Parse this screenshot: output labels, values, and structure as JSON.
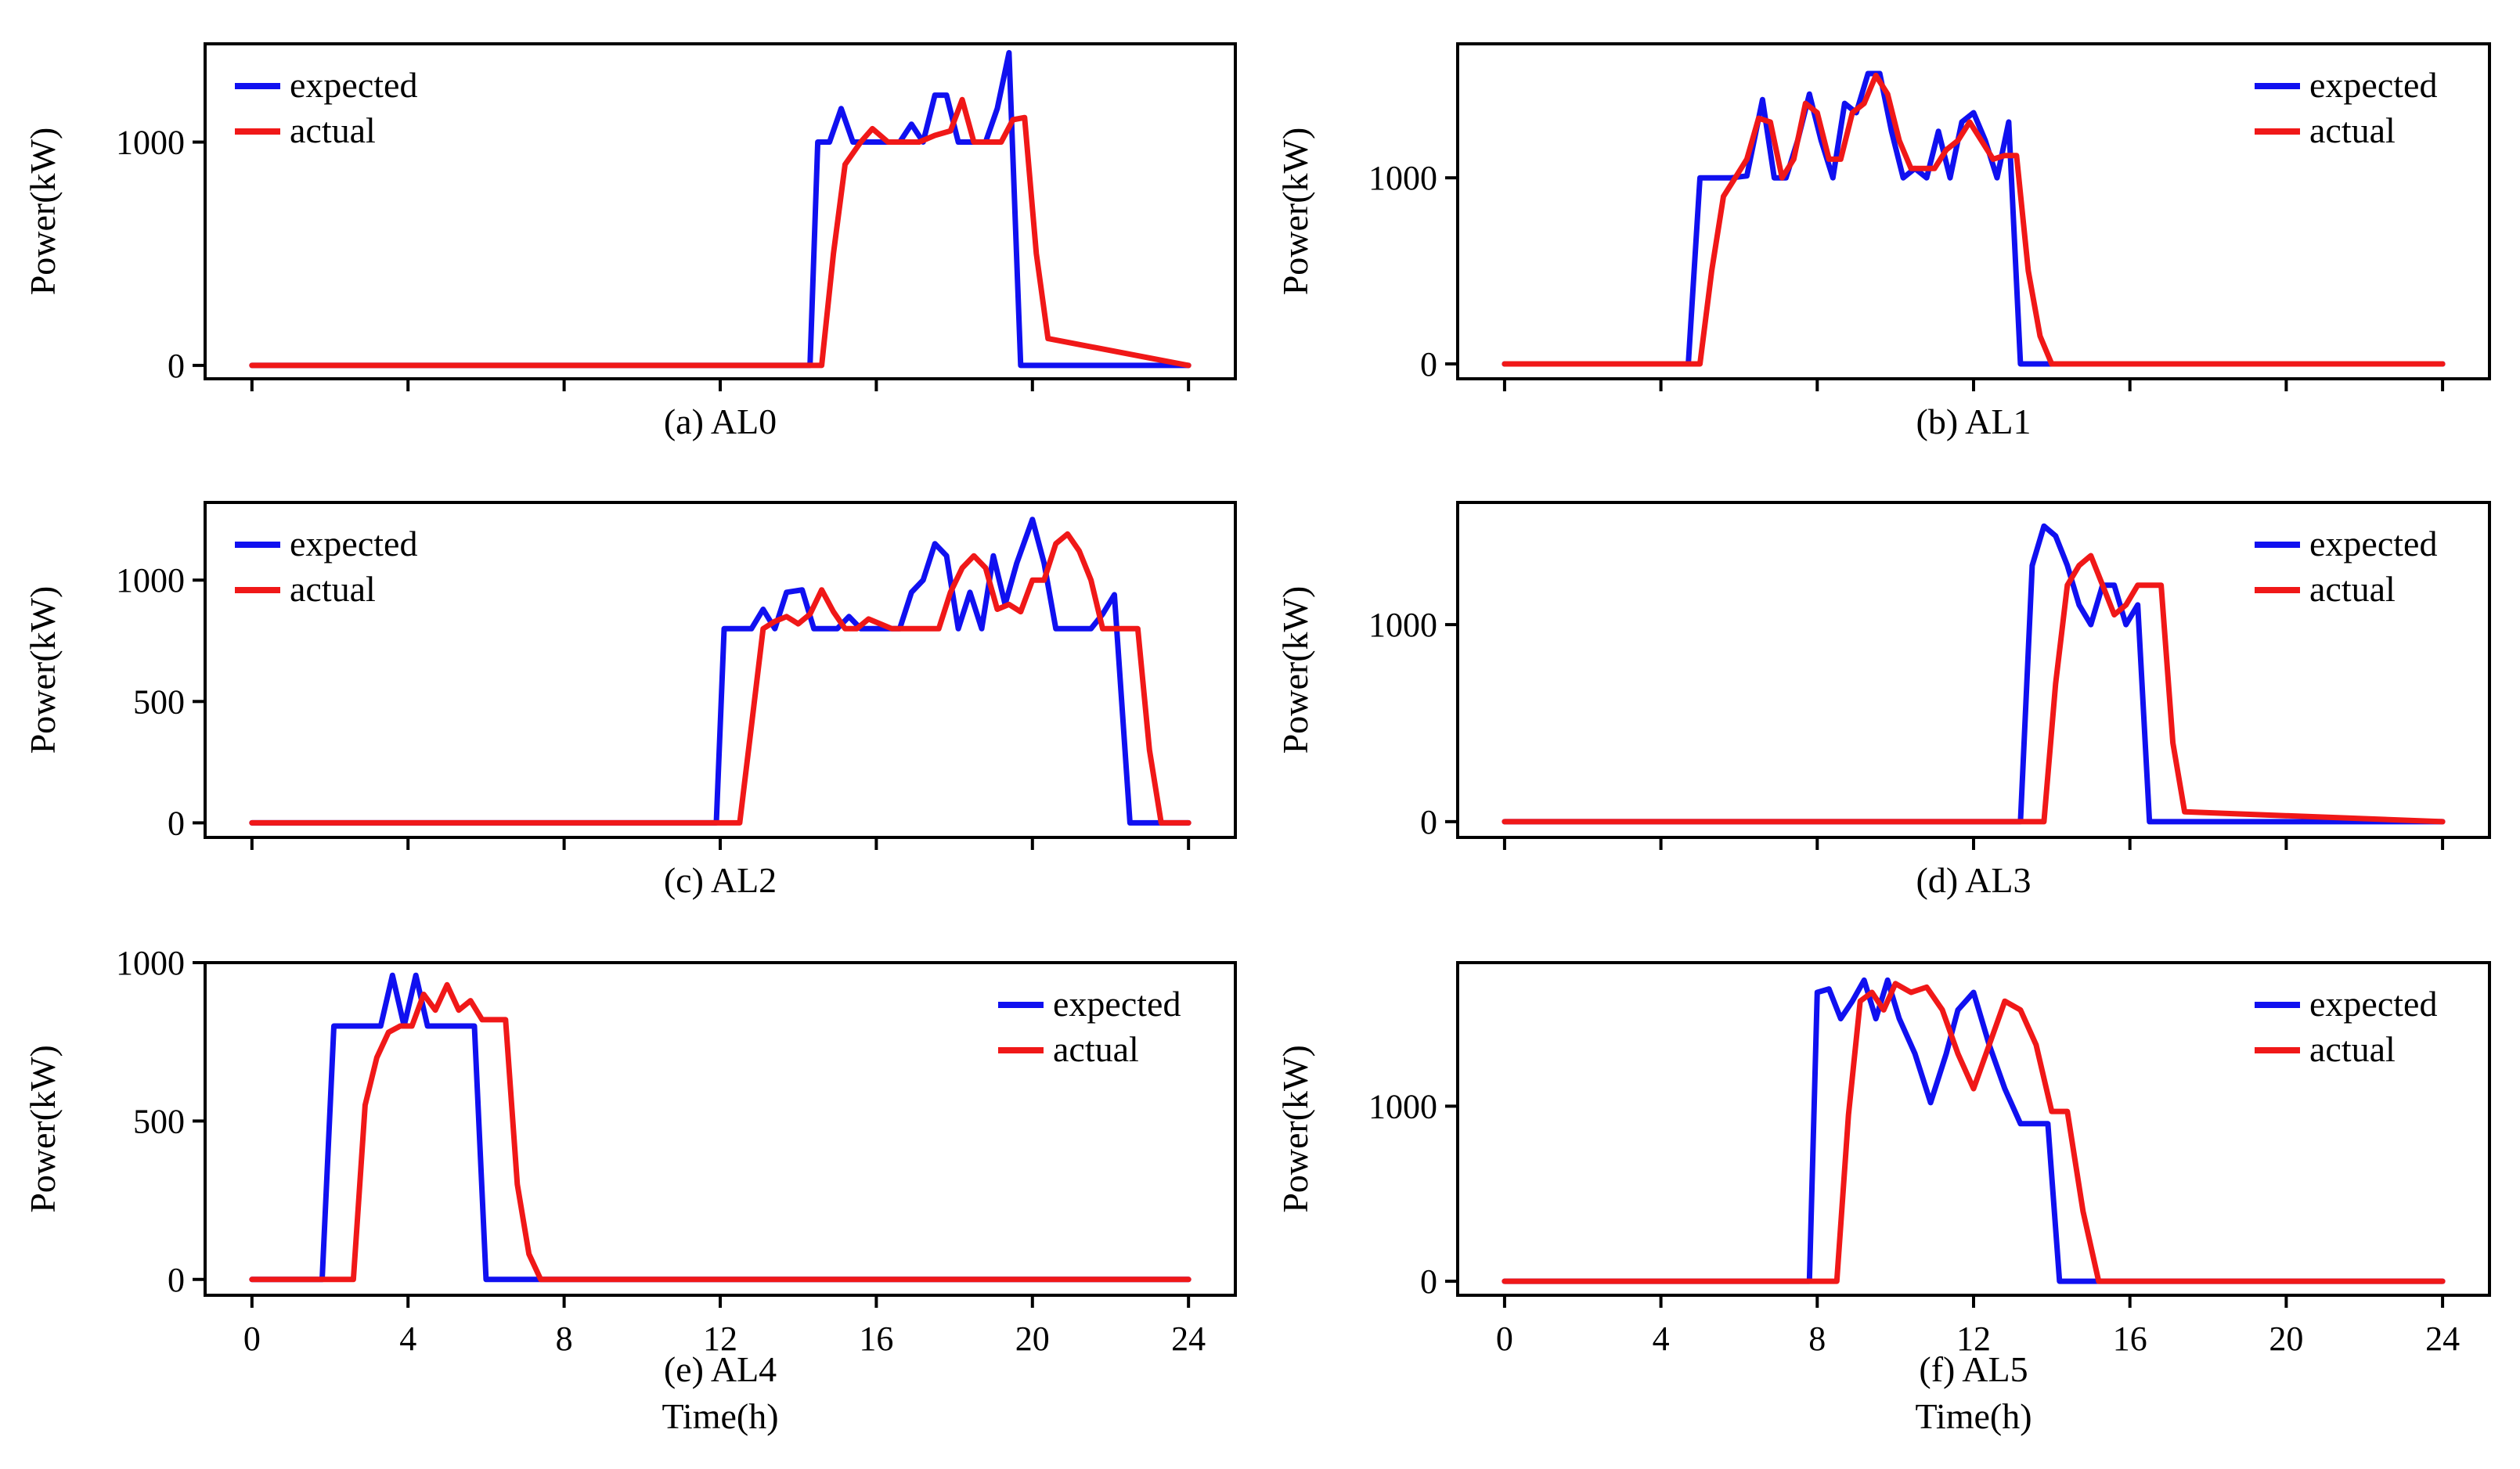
{
  "figure": {
    "x_axis_title": "Time(h)",
    "y_axis_title": "Power(kW)",
    "series_colors": {
      "expected": "#1010f0",
      "actual": "#f01818"
    }
  },
  "chart_data": [
    {
      "type": "line",
      "id": "al0",
      "caption": "(a) AL0",
      "xlim": [
        -1.2,
        25.2
      ],
      "ylim": [
        -60,
        1440
      ],
      "xticks": [
        0,
        4,
        8,
        12,
        16,
        20,
        24
      ],
      "show_xtick_labels": false,
      "yticks": [
        0,
        1000
      ],
      "ytick_labels": [
        "0",
        "1000"
      ],
      "ylabel": "Power(kW)",
      "xlabel": "",
      "legend_position": "top-left",
      "series": [
        {
          "name": "expected",
          "legend_label": "expected",
          "x": [
            0,
            14.3,
            14.5,
            14.8,
            15.1,
            15.4,
            15.8,
            16.2,
            16.6,
            16.9,
            17.2,
            17.5,
            17.8,
            18.1,
            18.4,
            18.8,
            19.1,
            19.4,
            19.7,
            24
          ],
          "y": [
            0,
            0,
            1000,
            1000,
            1150,
            1000,
            1000,
            1000,
            1000,
            1080,
            1000,
            1210,
            1210,
            1000,
            1000,
            1000,
            1150,
            1400,
            0,
            0
          ]
        },
        {
          "name": "actual",
          "legend_label": "actual",
          "x": [
            0,
            14.6,
            14.9,
            15.2,
            15.6,
            15.9,
            16.3,
            16.7,
            17.1,
            17.5,
            17.9,
            18.2,
            18.5,
            18.8,
            19.2,
            19.5,
            19.8,
            20.1,
            20.4,
            24
          ],
          "y": [
            0,
            0,
            500,
            900,
            1000,
            1060,
            1000,
            1000,
            1000,
            1030,
            1050,
            1190,
            1000,
            1000,
            1000,
            1100,
            1110,
            500,
            120,
            0
          ]
        }
      ]
    },
    {
      "type": "line",
      "id": "al1",
      "caption": "(b) AL1",
      "xlim": [
        -1.2,
        25.2
      ],
      "ylim": [
        -80,
        1720
      ],
      "xticks": [
        0,
        4,
        8,
        12,
        16,
        20,
        24
      ],
      "show_xtick_labels": false,
      "yticks": [
        0,
        1000
      ],
      "ytick_labels": [
        "0",
        "1000"
      ],
      "ylabel": "Power(kW)",
      "xlabel": "",
      "legend_position": "top-right",
      "series": [
        {
          "name": "expected",
          "legend_label": "expected",
          "x": [
            0,
            4.7,
            5.0,
            5.4,
            5.8,
            6.2,
            6.6,
            6.9,
            7.2,
            7.5,
            7.8,
            8.1,
            8.4,
            8.7,
            9.0,
            9.3,
            9.6,
            9.9,
            10.2,
            10.5,
            10.8,
            11.1,
            11.4,
            11.7,
            12.0,
            12.3,
            12.6,
            12.9,
            13.2,
            13.5,
            13.8,
            14.1,
            24
          ],
          "y": [
            0,
            0,
            1000,
            1000,
            1000,
            1010,
            1420,
            1000,
            1000,
            1200,
            1450,
            1200,
            1000,
            1400,
            1350,
            1560,
            1560,
            1250,
            1000,
            1050,
            1000,
            1250,
            1000,
            1300,
            1350,
            1200,
            1000,
            1300,
            0,
            0,
            0,
            0,
            0
          ]
        },
        {
          "name": "actual",
          "legend_label": "actual",
          "x": [
            0,
            5.0,
            5.3,
            5.6,
            5.9,
            6.2,
            6.5,
            6.8,
            7.1,
            7.4,
            7.7,
            8.0,
            8.3,
            8.6,
            8.9,
            9.2,
            9.5,
            9.8,
            10.1,
            10.4,
            10.7,
            11.0,
            11.3,
            11.6,
            11.9,
            12.2,
            12.5,
            12.8,
            13.1,
            13.4,
            13.7,
            14.0,
            24
          ],
          "y": [
            0,
            0,
            500,
            900,
            1000,
            1100,
            1320,
            1300,
            1000,
            1100,
            1400,
            1350,
            1100,
            1100,
            1350,
            1400,
            1550,
            1450,
            1200,
            1050,
            1050,
            1050,
            1150,
            1200,
            1300,
            1200,
            1100,
            1120,
            1120,
            500,
            150,
            0,
            0
          ]
        }
      ]
    },
    {
      "type": "line",
      "id": "al2",
      "caption": "(c) AL2",
      "xlim": [
        -1.2,
        25.2
      ],
      "ylim": [
        -60,
        1320
      ],
      "xticks": [
        0,
        4,
        8,
        12,
        16,
        20,
        24
      ],
      "show_xtick_labels": false,
      "yticks": [
        0,
        500,
        1000
      ],
      "ytick_labels": [
        "0",
        "500",
        "1000"
      ],
      "ylabel": "Power(kW)",
      "xlabel": "",
      "legend_position": "top-left",
      "series": [
        {
          "name": "expected",
          "legend_label": "expected",
          "x": [
            0,
            11.9,
            12.1,
            12.4,
            12.8,
            13.1,
            13.4,
            13.7,
            14.1,
            14.4,
            14.7,
            15.0,
            15.3,
            15.6,
            16.0,
            16.3,
            16.6,
            16.9,
            17.2,
            17.5,
            17.8,
            18.1,
            18.4,
            18.7,
            19.0,
            19.3,
            19.6,
            20.0,
            20.3,
            20.6,
            20.9,
            21.2,
            21.5,
            21.8,
            22.1,
            22.5,
            22.9,
            24
          ],
          "y": [
            0,
            0,
            800,
            800,
            800,
            880,
            800,
            950,
            960,
            800,
            800,
            800,
            850,
            800,
            800,
            800,
            800,
            950,
            1000,
            1150,
            1100,
            800,
            950,
            800,
            1100,
            900,
            1070,
            1250,
            1070,
            800,
            800,
            800,
            800,
            860,
            940,
            0,
            0,
            0
          ]
        },
        {
          "name": "actual",
          "legend_label": "actual",
          "x": [
            0,
            12.5,
            12.8,
            13.1,
            13.4,
            13.7,
            14.0,
            14.3,
            14.6,
            14.9,
            15.2,
            15.5,
            15.8,
            16.1,
            16.4,
            16.7,
            17.0,
            17.3,
            17.6,
            17.9,
            18.2,
            18.5,
            18.8,
            19.1,
            19.4,
            19.7,
            20.0,
            20.3,
            20.6,
            20.9,
            21.2,
            21.5,
            21.8,
            22.1,
            22.4,
            22.7,
            23.0,
            23.3,
            24
          ],
          "y": [
            0,
            0,
            400,
            800,
            830,
            850,
            820,
            860,
            960,
            870,
            800,
            800,
            840,
            820,
            800,
            800,
            800,
            800,
            800,
            950,
            1050,
            1100,
            1050,
            880,
            900,
            870,
            1000,
            1000,
            1150,
            1190,
            1120,
            1000,
            800,
            800,
            800,
            800,
            300,
            0,
            0
          ]
        }
      ]
    },
    {
      "type": "line",
      "id": "al3",
      "caption": "(d) AL3",
      "xlim": [
        -1.2,
        25.2
      ],
      "ylim": [
        -80,
        1620
      ],
      "xticks": [
        0,
        4,
        8,
        12,
        16,
        20,
        24
      ],
      "show_xtick_labels": false,
      "yticks": [
        0,
        1000
      ],
      "ytick_labels": [
        "0",
        "1000"
      ],
      "ylabel": "Power(kW)",
      "xlabel": "",
      "legend_position": "top-right",
      "series": [
        {
          "name": "expected",
          "legend_label": "expected",
          "x": [
            0,
            13.2,
            13.5,
            13.8,
            14.1,
            14.4,
            14.7,
            15.0,
            15.3,
            15.6,
            15.9,
            16.2,
            16.5,
            24
          ],
          "y": [
            0,
            0,
            1300,
            1500,
            1450,
            1300,
            1100,
            1000,
            1200,
            1200,
            1000,
            1100,
            0,
            0
          ]
        },
        {
          "name": "actual",
          "legend_label": "actual",
          "x": [
            0,
            13.8,
            14.1,
            14.4,
            14.7,
            15.0,
            15.3,
            15.6,
            15.9,
            16.2,
            16.5,
            16.8,
            17.1,
            17.4,
            24
          ],
          "y": [
            0,
            0,
            700,
            1200,
            1300,
            1350,
            1200,
            1050,
            1100,
            1200,
            1200,
            1200,
            400,
            50,
            0
          ]
        }
      ]
    },
    {
      "type": "line",
      "id": "al4",
      "caption": "(e) AL4",
      "xlim": [
        -1.2,
        25.2
      ],
      "ylim": [
        -50,
        1000
      ],
      "xticks": [
        0,
        4,
        8,
        12,
        16,
        20,
        24
      ],
      "xtick_labels": [
        "0",
        "4",
        "8",
        "12",
        "16",
        "20",
        "24"
      ],
      "show_xtick_labels": true,
      "yticks": [
        0,
        500,
        1000
      ],
      "ytick_labels": [
        "0",
        "500",
        "1000"
      ],
      "ylabel": "Power(kW)",
      "xlabel": "Time(h)",
      "legend_position": "top-right",
      "series": [
        {
          "name": "expected",
          "legend_label": "expected",
          "x": [
            0,
            1.8,
            2.1,
            2.5,
            2.9,
            3.3,
            3.6,
            3.9,
            4.2,
            4.5,
            4.8,
            5.1,
            5.4,
            5.7,
            6.0,
            7.3,
            24
          ],
          "y": [
            0,
            0,
            800,
            800,
            800,
            800,
            960,
            800,
            960,
            800,
            800,
            800,
            800,
            800,
            0,
            0,
            0
          ]
        },
        {
          "name": "actual",
          "legend_label": "actual",
          "x": [
            0,
            2.6,
            2.9,
            3.2,
            3.5,
            3.8,
            4.1,
            4.4,
            4.7,
            5.0,
            5.3,
            5.6,
            5.9,
            6.2,
            6.5,
            6.8,
            7.1,
            7.4,
            24
          ],
          "y": [
            0,
            0,
            550,
            700,
            780,
            800,
            800,
            900,
            850,
            930,
            850,
            880,
            820,
            820,
            820,
            300,
            80,
            0,
            0
          ]
        }
      ]
    },
    {
      "type": "line",
      "id": "al5",
      "caption": "(f) AL5",
      "xlim": [
        -1.2,
        25.2
      ],
      "ylim": [
        -80,
        1820
      ],
      "xticks": [
        0,
        4,
        8,
        12,
        16,
        20,
        24
      ],
      "xtick_labels": [
        "0",
        "4",
        "8",
        "12",
        "16",
        "20",
        "24"
      ],
      "show_xtick_labels": true,
      "yticks": [
        0,
        1000
      ],
      "ytick_labels": [
        "0",
        "1000"
      ],
      "ylabel": "Power(kW)",
      "xlabel": "Time(h)",
      "legend_position": "top-right",
      "series": [
        {
          "name": "expected",
          "legend_label": "expected",
          "x": [
            0,
            7.8,
            8.0,
            8.3,
            8.6,
            8.9,
            9.2,
            9.5,
            9.8,
            10.1,
            10.5,
            10.9,
            11.3,
            11.6,
            12.0,
            12.4,
            12.8,
            13.2,
            13.5,
            13.9,
            14.2,
            24
          ],
          "y": [
            0,
            0,
            1650,
            1670,
            1500,
            1600,
            1720,
            1500,
            1720,
            1500,
            1300,
            1020,
            1300,
            1550,
            1650,
            1350,
            1100,
            900,
            900,
            900,
            0,
            0
          ]
        },
        {
          "name": "actual",
          "legend_label": "actual",
          "x": [
            0,
            8.5,
            8.8,
            9.1,
            9.4,
            9.7,
            10.0,
            10.4,
            10.8,
            11.2,
            11.6,
            12.0,
            12.4,
            12.8,
            13.2,
            13.6,
            14.0,
            14.4,
            14.8,
            15.2,
            24
          ],
          "y": [
            0,
            0,
            950,
            1600,
            1650,
            1550,
            1700,
            1650,
            1680,
            1550,
            1300,
            1100,
            1350,
            1600,
            1550,
            1350,
            970,
            970,
            400,
            0,
            0
          ]
        }
      ]
    }
  ]
}
